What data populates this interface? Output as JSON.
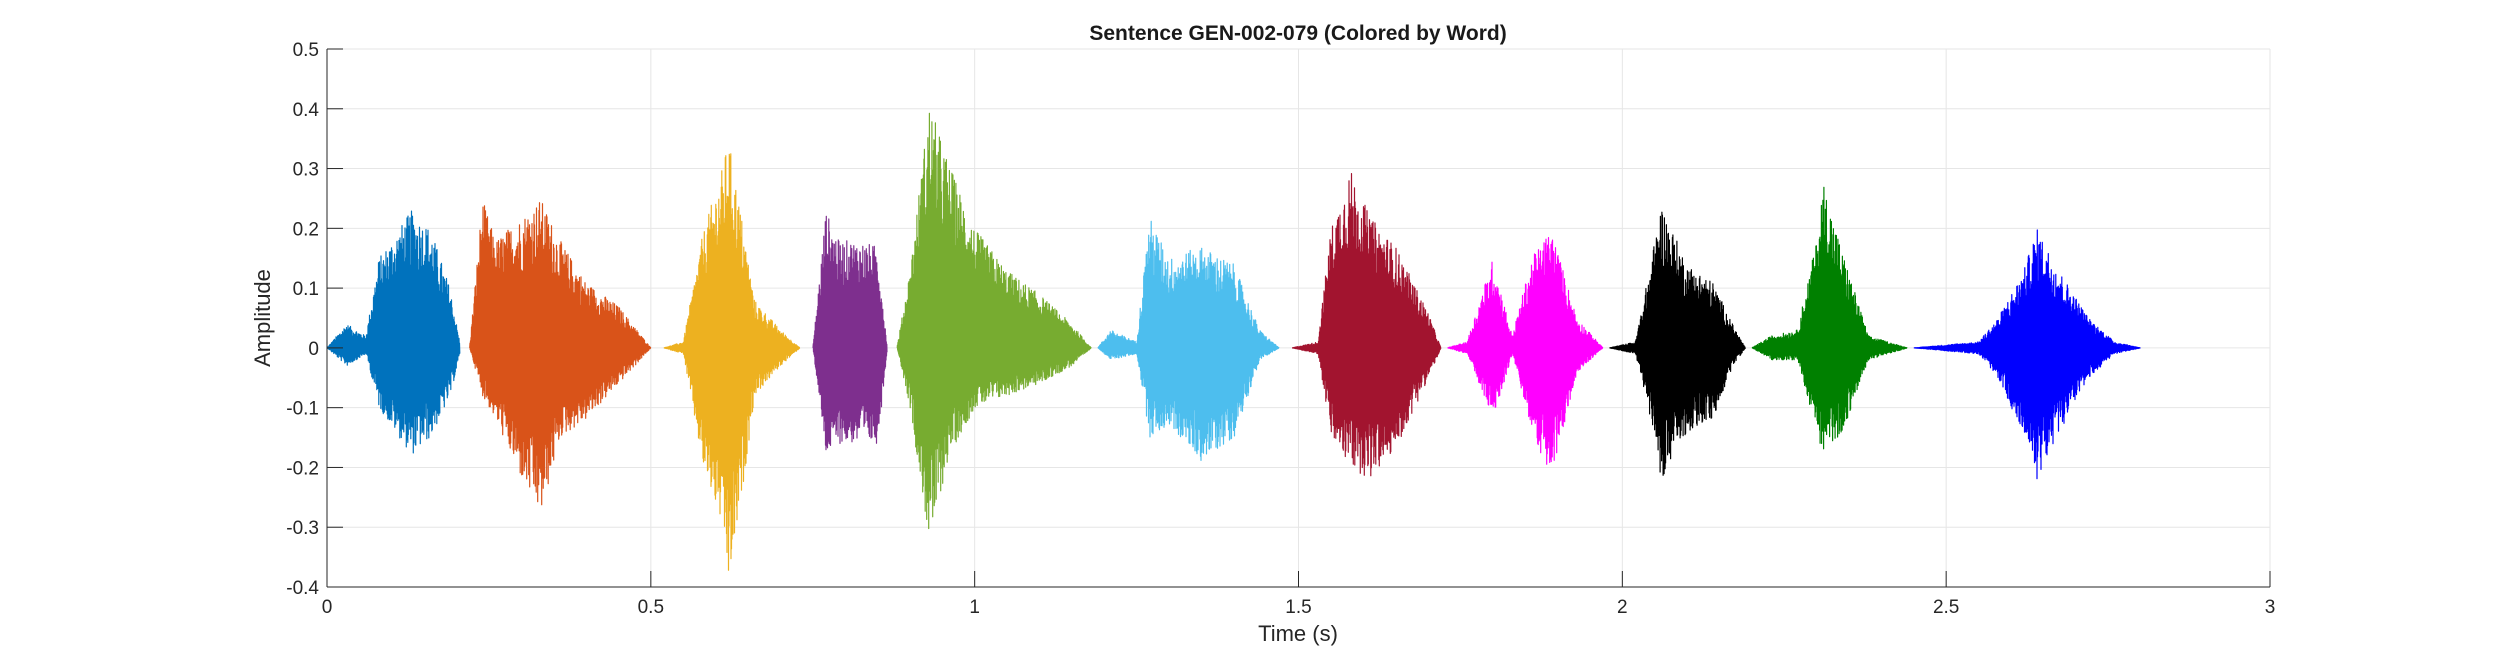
{
  "chart_data": {
    "type": "line",
    "title": "Sentence GEN-002-079 (Colored by Word)",
    "xlabel": "Time (s)",
    "ylabel": "Amplitude",
    "xlim": [
      0,
      3
    ],
    "ylim": [
      -0.4,
      0.5
    ],
    "xticks": [
      0,
      0.5,
      1,
      1.5,
      2,
      2.5,
      3
    ],
    "xtick_labels": [
      "0",
      "0.5",
      "1",
      "1.5",
      "2",
      "2.5",
      "3"
    ],
    "yticks": [
      -0.4,
      -0.3,
      -0.2,
      -0.1,
      0,
      0.1,
      0.2,
      0.3,
      0.4,
      0.5
    ],
    "ytick_labels": [
      "-0.4",
      "-0.3",
      "-0.2",
      "-0.1",
      "0",
      "0.1",
      "0.2",
      "0.3",
      "0.4",
      "0.5"
    ],
    "grid": true,
    "series": [
      {
        "color": "#0072BD",
        "x_start": 0.0,
        "x_end": 0.205,
        "envelope": [
          [
            0.0,
            0.0,
            0.0
          ],
          [
            0.03,
            0.04,
            -0.03
          ],
          [
            0.06,
            0.02,
            -0.01
          ],
          [
            0.08,
            0.15,
            -0.1
          ],
          [
            0.13,
            0.23,
            -0.18
          ],
          [
            0.16,
            0.2,
            -0.15
          ],
          [
            0.19,
            0.1,
            -0.08
          ],
          [
            0.205,
            0.01,
            -0.01
          ]
        ]
      },
      {
        "color": "#D95319",
        "x_start": 0.22,
        "x_end": 0.5,
        "envelope": [
          [
            0.22,
            0.0,
            0.0
          ],
          [
            0.24,
            0.25,
            -0.08
          ],
          [
            0.26,
            0.18,
            -0.12
          ],
          [
            0.3,
            0.22,
            -0.22
          ],
          [
            0.33,
            0.25,
            -0.28
          ],
          [
            0.36,
            0.18,
            -0.15
          ],
          [
            0.4,
            0.11,
            -0.12
          ],
          [
            0.45,
            0.07,
            -0.06
          ],
          [
            0.5,
            0.0,
            0.0
          ]
        ]
      },
      {
        "color": "#EDB120",
        "x_start": 0.52,
        "x_end": 0.73,
        "envelope": [
          [
            0.52,
            0.0,
            0.0
          ],
          [
            0.55,
            0.01,
            -0.01
          ],
          [
            0.58,
            0.19,
            -0.2
          ],
          [
            0.61,
            0.3,
            -0.3
          ],
          [
            0.62,
            0.35,
            -0.4
          ],
          [
            0.64,
            0.22,
            -0.25
          ],
          [
            0.66,
            0.08,
            -0.08
          ],
          [
            0.7,
            0.03,
            -0.03
          ],
          [
            0.73,
            0.0,
            0.0
          ]
        ]
      },
      {
        "color": "#7E2F8E",
        "x_start": 0.75,
        "x_end": 0.865,
        "envelope": [
          [
            0.75,
            0.0,
            0.0
          ],
          [
            0.77,
            0.23,
            -0.18
          ],
          [
            0.79,
            0.18,
            -0.16
          ],
          [
            0.82,
            0.18,
            -0.16
          ],
          [
            0.85,
            0.17,
            -0.16
          ],
          [
            0.865,
            0.0,
            0.0
          ]
        ]
      },
      {
        "color": "#77AC30",
        "x_start": 0.88,
        "x_end": 1.18,
        "envelope": [
          [
            0.88,
            0.0,
            0.0
          ],
          [
            0.9,
            0.13,
            -0.1
          ],
          [
            0.93,
            0.41,
            -0.33
          ],
          [
            0.96,
            0.31,
            -0.18
          ],
          [
            1.0,
            0.2,
            -0.1
          ],
          [
            1.05,
            0.13,
            -0.08
          ],
          [
            1.1,
            0.09,
            -0.06
          ],
          [
            1.15,
            0.04,
            -0.03
          ],
          [
            1.18,
            0.0,
            0.0
          ]
        ]
      },
      {
        "color": "#4DBEEE",
        "x_start": 1.19,
        "x_end": 1.47,
        "envelope": [
          [
            1.19,
            0.0,
            0.0
          ],
          [
            1.21,
            0.03,
            -0.02
          ],
          [
            1.25,
            0.01,
            -0.01
          ],
          [
            1.27,
            0.22,
            -0.15
          ],
          [
            1.3,
            0.15,
            -0.13
          ],
          [
            1.35,
            0.17,
            -0.19
          ],
          [
            1.4,
            0.14,
            -0.15
          ],
          [
            1.44,
            0.03,
            -0.02
          ],
          [
            1.47,
            0.0,
            0.0
          ]
        ]
      },
      {
        "color": "#A2142F",
        "x_start": 1.49,
        "x_end": 1.72,
        "envelope": [
          [
            1.49,
            0.0,
            0.0
          ],
          [
            1.53,
            0.01,
            -0.01
          ],
          [
            1.55,
            0.2,
            -0.15
          ],
          [
            1.58,
            0.3,
            -0.2
          ],
          [
            1.61,
            0.22,
            -0.22
          ],
          [
            1.65,
            0.17,
            -0.17
          ],
          [
            1.7,
            0.06,
            -0.05
          ],
          [
            1.72,
            0.0,
            0.0
          ]
        ]
      },
      {
        "color": "#FF00FF",
        "x_start": 1.73,
        "x_end": 1.97,
        "envelope": [
          [
            1.73,
            0.0,
            0.0
          ],
          [
            1.76,
            0.01,
            -0.01
          ],
          [
            1.8,
            0.15,
            -0.12
          ],
          [
            1.83,
            0.02,
            -0.01
          ],
          [
            1.86,
            0.15,
            -0.14
          ],
          [
            1.89,
            0.2,
            -0.22
          ],
          [
            1.93,
            0.05,
            -0.04
          ],
          [
            1.97,
            0.0,
            0.0
          ]
        ]
      },
      {
        "color": "#000000",
        "x_start": 1.98,
        "x_end": 2.19,
        "envelope": [
          [
            1.98,
            0.0,
            0.0
          ],
          [
            2.02,
            0.01,
            -0.01
          ],
          [
            2.04,
            0.12,
            -0.1
          ],
          [
            2.06,
            0.24,
            -0.22
          ],
          [
            2.1,
            0.14,
            -0.14
          ],
          [
            2.14,
            0.11,
            -0.12
          ],
          [
            2.17,
            0.04,
            -0.03
          ],
          [
            2.19,
            0.0,
            0.0
          ]
        ]
      },
      {
        "color": "#008000",
        "x_start": 2.2,
        "x_end": 2.44,
        "envelope": [
          [
            2.2,
            0.0,
            0.0
          ],
          [
            2.23,
            0.02,
            -0.02
          ],
          [
            2.27,
            0.03,
            -0.02
          ],
          [
            2.3,
            0.18,
            -0.14
          ],
          [
            2.31,
            0.28,
            -0.18
          ],
          [
            2.34,
            0.16,
            -0.14
          ],
          [
            2.38,
            0.02,
            -0.02
          ],
          [
            2.44,
            0.0,
            0.0
          ]
        ]
      },
      {
        "color": "#0000FF",
        "x_start": 2.45,
        "x_end": 2.8,
        "envelope": [
          [
            2.45,
            0.0,
            0.0
          ],
          [
            2.55,
            0.01,
            -0.01
          ],
          [
            2.58,
            0.05,
            -0.05
          ],
          [
            2.62,
            0.13,
            -0.15
          ],
          [
            2.64,
            0.2,
            -0.22
          ],
          [
            2.68,
            0.12,
            -0.13
          ],
          [
            2.72,
            0.05,
            -0.05
          ],
          [
            2.76,
            0.01,
            -0.01
          ],
          [
            2.8,
            0.0,
            0.0
          ]
        ]
      }
    ]
  }
}
